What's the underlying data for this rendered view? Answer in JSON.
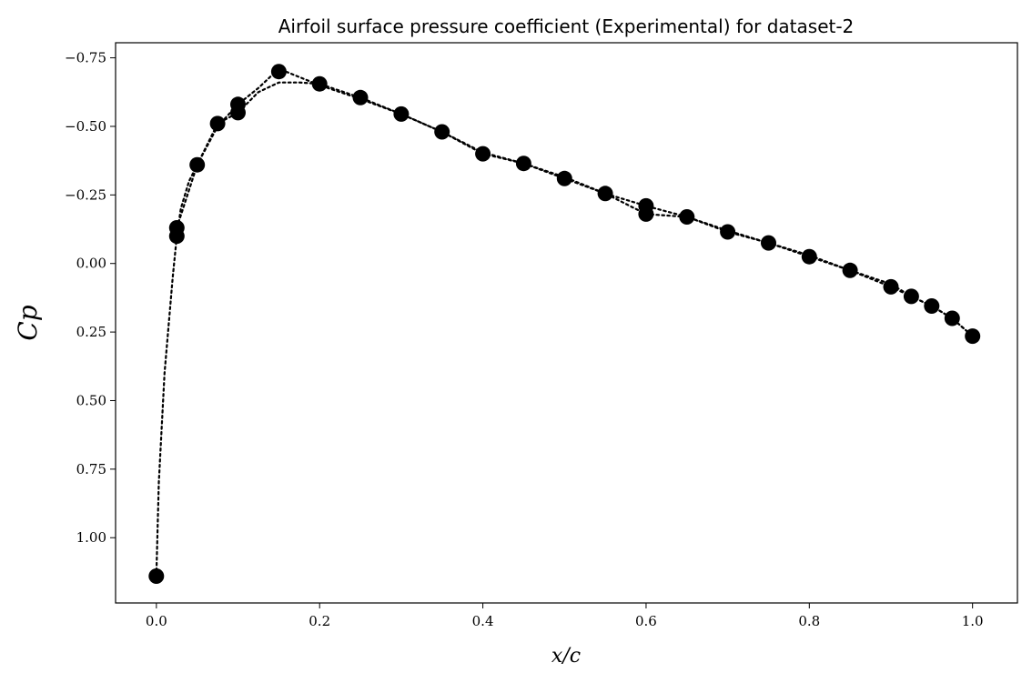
{
  "chart_data": {
    "type": "line",
    "title": "Airfoil surface pressure coefficient (Experimental) for dataset-2",
    "xlabel": "x/c",
    "ylabel": "Cp",
    "xlim": [
      -0.05,
      1.055
    ],
    "ylim": [
      1.238,
      -0.805
    ],
    "y_inverted": true,
    "grid": false,
    "xticks": [
      0.0,
      0.2,
      0.4,
      0.6,
      0.8,
      1.0
    ],
    "xtick_labels": [
      "0.0",
      "0.2",
      "0.4",
      "0.6",
      "0.8",
      "1.0"
    ],
    "yticks": [
      -0.75,
      -0.5,
      -0.25,
      0.0,
      0.25,
      0.5,
      0.75,
      1.0
    ],
    "ytick_labels": [
      "−0.75",
      "−0.50",
      "−0.25",
      "0.00",
      "0.25",
      "0.50",
      "0.75",
      "1.00"
    ],
    "series": [
      {
        "style": "dotted-line",
        "color": "#000000",
        "x": [
          0.0,
          0.003,
          0.01,
          0.02,
          0.025,
          0.03,
          0.04,
          0.05,
          0.075,
          0.1,
          0.125,
          0.15,
          0.175,
          0.2,
          0.25,
          0.3,
          0.35,
          0.4,
          0.45,
          0.5,
          0.55,
          0.6,
          0.65,
          0.7,
          0.75,
          0.8,
          0.85,
          0.9,
          0.925,
          0.95,
          0.975,
          1.0
        ],
        "y": [
          1.14,
          0.8,
          0.4,
          0.05,
          -0.1,
          -0.2,
          -0.3,
          -0.36,
          -0.5,
          -0.58,
          -0.64,
          -0.71,
          -0.68,
          -0.65,
          -0.6,
          -0.545,
          -0.48,
          -0.4,
          -0.365,
          -0.315,
          -0.255,
          -0.18,
          -0.17,
          -0.12,
          -0.075,
          -0.025,
          0.025,
          0.085,
          0.12,
          0.155,
          0.2,
          0.265
        ]
      },
      {
        "style": "dotted-line",
        "color": "#000000",
        "x": [
          0.025,
          0.05,
          0.075,
          0.1,
          0.125,
          0.15,
          0.175,
          0.2,
          0.25,
          0.3,
          0.35,
          0.4,
          0.45,
          0.5,
          0.55,
          0.6,
          0.65,
          0.7,
          0.75,
          0.8,
          0.85,
          0.9,
          0.925,
          0.95,
          0.975,
          1.0
        ],
        "y": [
          -0.13,
          -0.36,
          -0.51,
          -0.55,
          -0.625,
          -0.66,
          -0.66,
          -0.655,
          -0.605,
          -0.545,
          -0.48,
          -0.405,
          -0.365,
          -0.31,
          -0.255,
          -0.21,
          -0.17,
          -0.115,
          -0.075,
          -0.03,
          0.025,
          0.075,
          0.12,
          0.155,
          0.2,
          0.265
        ]
      },
      {
        "style": "markers",
        "color": "#000000",
        "x": [
          0.0,
          0.025,
          0.025,
          0.05,
          0.075,
          0.1,
          0.1,
          0.15,
          0.2,
          0.25,
          0.3,
          0.35,
          0.4,
          0.45,
          0.5,
          0.55,
          0.6,
          0.6,
          0.65,
          0.7,
          0.75,
          0.8,
          0.85,
          0.9,
          0.925,
          0.95,
          0.975,
          1.0
        ],
        "y": [
          1.14,
          -0.13,
          -0.1,
          -0.36,
          -0.51,
          -0.58,
          -0.55,
          -0.7,
          -0.655,
          -0.605,
          -0.545,
          -0.48,
          -0.4,
          -0.365,
          -0.31,
          -0.255,
          -0.21,
          -0.18,
          -0.17,
          -0.115,
          -0.075,
          -0.025,
          0.025,
          0.085,
          0.12,
          0.155,
          0.2,
          0.265
        ]
      }
    ]
  }
}
